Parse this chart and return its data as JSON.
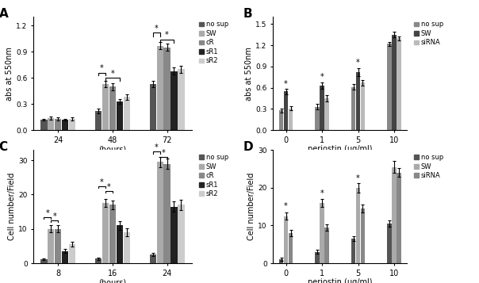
{
  "panel_A": {
    "title": "A",
    "xlabel": "(hours)",
    "ylabel": "abs at 550nm",
    "xticks": [
      24,
      48,
      72
    ],
    "ylim": [
      0,
      1.3
    ],
    "yticks": [
      0.0,
      0.3,
      0.6,
      0.9,
      1.2
    ],
    "groups": [
      "no sup",
      "SW",
      "cR",
      "sR1",
      "sR2"
    ],
    "colors": [
      "#555555",
      "#aaaaaa",
      "#888888",
      "#222222",
      "#cccccc"
    ],
    "data": {
      "24": [
        0.12,
        0.14,
        0.13,
        0.12,
        0.13
      ],
      "48": [
        0.22,
        0.53,
        0.5,
        0.33,
        0.38
      ],
      "72": [
        0.53,
        0.97,
        0.95,
        0.68,
        0.7
      ]
    },
    "errors": {
      "24": [
        0.01,
        0.02,
        0.02,
        0.01,
        0.02
      ],
      "48": [
        0.03,
        0.04,
        0.04,
        0.03,
        0.03
      ],
      "72": [
        0.04,
        0.04,
        0.04,
        0.04,
        0.04
      ]
    }
  },
  "panel_B": {
    "title": "B",
    "xlabel": "periostin (μg/ml)",
    "ylabel": "abs at 550nm",
    "xticks": [
      0,
      1,
      5,
      10
    ],
    "ylim": [
      0,
      1.6
    ],
    "yticks": [
      0,
      0.3,
      0.6,
      0.9,
      1.2,
      1.5
    ],
    "groups": [
      "no sup",
      "SW",
      "siRNA"
    ],
    "colors": [
      "#888888",
      "#444444",
      "#bbbbbb"
    ],
    "data": {
      "0": [
        0.28,
        0.55,
        0.31
      ],
      "1": [
        0.33,
        0.63,
        0.45
      ],
      "5": [
        0.61,
        0.82,
        0.67
      ],
      "10": [
        1.22,
        1.35,
        1.3
      ]
    },
    "errors": {
      "0": [
        0.03,
        0.04,
        0.03
      ],
      "1": [
        0.04,
        0.05,
        0.04
      ],
      "5": [
        0.04,
        0.06,
        0.04
      ],
      "10": [
        0.03,
        0.04,
        0.03
      ]
    }
  },
  "panel_C": {
    "title": "C",
    "xlabel": "(hours)",
    "ylabel": "Cell number/Field",
    "xticks": [
      8,
      16,
      24
    ],
    "ylim": [
      0,
      33
    ],
    "yticks": [
      0,
      10,
      20,
      30
    ],
    "groups": [
      "no sup",
      "SW",
      "cR",
      "sR1",
      "sR2"
    ],
    "colors": [
      "#555555",
      "#aaaaaa",
      "#888888",
      "#222222",
      "#cccccc"
    ],
    "data": {
      "8": [
        1.2,
        10.0,
        10.0,
        3.5,
        5.5
      ],
      "16": [
        1.3,
        17.5,
        17.0,
        11.0,
        9.0
      ],
      "24": [
        2.5,
        29.5,
        29.0,
        16.5,
        17.0
      ]
    },
    "errors": {
      "8": [
        0.3,
        1.0,
        1.0,
        0.6,
        0.7
      ],
      "16": [
        0.4,
        1.2,
        1.2,
        1.2,
        1.2
      ],
      "24": [
        0.5,
        1.5,
        1.5,
        1.5,
        1.5
      ]
    }
  },
  "panel_D": {
    "title": "D",
    "xlabel": "periostin (μg/ml)",
    "ylabel": "Cell number/Field",
    "xticks": [
      0,
      1,
      5,
      10
    ],
    "ylim": [
      0,
      30
    ],
    "yticks": [
      0,
      10,
      20,
      30
    ],
    "groups": [
      "no sup",
      "SW",
      "siRNA"
    ],
    "colors": [
      "#555555",
      "#aaaaaa",
      "#888888"
    ],
    "data": {
      "0": [
        1.0,
        12.5,
        8.0
      ],
      "1": [
        3.0,
        16.0,
        9.5
      ],
      "5": [
        6.5,
        20.0,
        14.5
      ],
      "10": [
        10.5,
        25.5,
        24.0
      ]
    },
    "errors": {
      "0": [
        0.4,
        1.0,
        0.8
      ],
      "1": [
        0.5,
        1.0,
        0.8
      ],
      "5": [
        0.6,
        1.2,
        1.0
      ],
      "10": [
        0.8,
        1.5,
        1.2
      ]
    }
  },
  "background_color": "#ffffff"
}
